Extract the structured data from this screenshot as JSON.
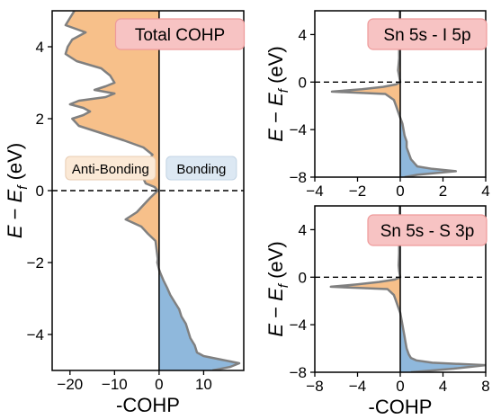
{
  "colors": {
    "antibonding": "#f7c08a",
    "bonding": "#8fb8dc",
    "curve": "#808080",
    "badge_fill": "#f7c3c3",
    "badge_stroke": "#ee9a9a",
    "antibonding_text": "#f08a30",
    "bonding_text": "#2f7fc0"
  },
  "ylabel_parts": [
    "E",
    " − ",
    "E",
    "f",
    " (eV)"
  ],
  "chart_data": [
    {
      "type": "area",
      "title": "Total COHP",
      "xlabel": "-COHP",
      "ylabel": "E − E_f (eV)",
      "xlim": [
        -24,
        19
      ],
      "ylim": [
        -5,
        5
      ],
      "xticks": [
        -20,
        -10,
        0,
        10
      ],
      "xtick_labels": [
        "−20",
        "−10",
        "0",
        "10"
      ],
      "yticks": [
        -4,
        -2,
        0,
        2,
        4
      ],
      "ytick_labels": [
        "−4",
        "−2",
        "0",
        "2",
        "4"
      ],
      "annotations": {
        "antibonding": "Anti-Bonding",
        "bonding": "Bonding"
      },
      "fermi_level": 0,
      "series": [
        {
          "values_energy": [
            -5,
            -4.9,
            -4.8,
            -4.7,
            -4.6,
            -4.5,
            -4.3,
            -4.1,
            -3.9,
            -3.7,
            -3.5,
            -3.3,
            -3.1,
            -2.9,
            -2.7,
            -2.5,
            -2.3,
            -2.2,
            -2.1,
            -2.0,
            -1.9,
            -1.8,
            -1.6,
            -1.4,
            -1.2,
            -1.0,
            -0.8,
            -0.6,
            -0.4,
            -0.2,
            0,
            0.1,
            0.2,
            0.4,
            0.6,
            0.8,
            1.0,
            1.2,
            1.4,
            1.6,
            1.8,
            2.0,
            2.1,
            2.2,
            2.3,
            2.4,
            2.5,
            2.6,
            2.7,
            2.8,
            2.9,
            3.0,
            3.2,
            3.4,
            3.6,
            3.8,
            4.0,
            4.2,
            4.4,
            4.6,
            4.8,
            5.0
          ],
          "values_cohp": [
            12,
            16,
            18,
            14,
            10,
            8.5,
            8,
            7,
            6.5,
            6,
            5,
            4.5,
            3.5,
            2.5,
            1.8,
            1,
            0.3,
            0,
            -0.2,
            -0.4,
            -0.3,
            -0.4,
            -0.6,
            -0.8,
            -2.5,
            -4,
            -7.5,
            -5,
            -3.5,
            -2,
            -0.3,
            -1,
            -3,
            -3.8,
            -3.5,
            -2.5,
            -1.5,
            -3.5,
            -8,
            -13,
            -18,
            -19.5,
            -17,
            -15.5,
            -17,
            -20,
            -18,
            -12,
            -10,
            -14.5,
            -12,
            -10,
            -11,
            -13,
            -18.5,
            -21,
            -20.5,
            -19.5,
            -16.5,
            -21,
            -20,
            -19
          ]
        }
      ]
    },
    {
      "type": "area",
      "title": "Sn 5s - I 5p",
      "xlabel": "",
      "ylabel": "E − E_f (eV)",
      "xlim": [
        -4,
        4
      ],
      "ylim": [
        -8,
        6
      ],
      "xticks": [
        -4,
        -2,
        0,
        2,
        4
      ],
      "xtick_labels": [
        "−4",
        "−2",
        "0",
        "2",
        "4"
      ],
      "yticks": [
        -8,
        -4,
        0,
        4
      ],
      "ytick_labels": [
        "−8",
        "−4",
        "0",
        "4"
      ],
      "fermi_level": 0,
      "series": [
        {
          "values_energy": [
            -8,
            -7.8,
            -7.5,
            -7.3,
            -7.1,
            -6.9,
            -6.7,
            -6.5,
            -6.0,
            -5.5,
            -5.0,
            -4.5,
            -4.0,
            -3.5,
            -3.0,
            -2.5,
            -2.0,
            -1.5,
            -1.0,
            -0.8,
            -0.6,
            -0.4,
            -0.2,
            0,
            0.5,
            1.0,
            2.0,
            3.0,
            4.0,
            5.0,
            6.0
          ],
          "values_cohp": [
            0.2,
            0.8,
            2.6,
            1.5,
            0.8,
            0.7,
            0.6,
            0.5,
            0.4,
            0.3,
            0.3,
            0.2,
            0.15,
            0.1,
            0,
            -0.1,
            -0.2,
            -0.3,
            -0.7,
            -3.2,
            -1.8,
            -0.8,
            -0.2,
            0,
            -0.05,
            -0.1,
            -0.05,
            -0.05,
            -0.05,
            -0.03,
            -0.02
          ]
        }
      ]
    },
    {
      "type": "area",
      "title": "Sn 5s - S 3p",
      "xlabel": "-COHP",
      "ylabel": "E − E_f (eV)",
      "xlim": [
        -8,
        8
      ],
      "ylim": [
        -8,
        6
      ],
      "xticks": [
        -8,
        -4,
        0,
        4,
        8
      ],
      "xtick_labels": [
        "−8",
        "−4",
        "0",
        "4",
        "8"
      ],
      "yticks": [
        -8,
        -4,
        0,
        4
      ],
      "ytick_labels": [
        "−8",
        "−4",
        "0",
        "4"
      ],
      "fermi_level": 0,
      "series": [
        {
          "values_energy": [
            -8,
            -7.7,
            -7.4,
            -7.2,
            -7.0,
            -6.8,
            -6.5,
            -6.0,
            -5.5,
            -5.0,
            -4.5,
            -4.0,
            -3.5,
            -3.0,
            -2.5,
            -2.0,
            -1.5,
            -1.0,
            -0.8,
            -0.6,
            -0.4,
            -0.2,
            0,
            0.5,
            1.0,
            2.0,
            3.0,
            4.0,
            5.0,
            6.0
          ],
          "values_cohp": [
            1,
            5,
            8,
            3,
            1.5,
            1,
            0.8,
            0.6,
            0.5,
            0.4,
            0.3,
            0.2,
            0.1,
            0,
            -0.2,
            -0.4,
            -0.6,
            -1.2,
            -6.5,
            -4,
            -2,
            -0.5,
            0,
            -0.1,
            -0.15,
            -0.1,
            -0.1,
            -0.1,
            -0.05,
            -0.05
          ]
        }
      ]
    }
  ]
}
